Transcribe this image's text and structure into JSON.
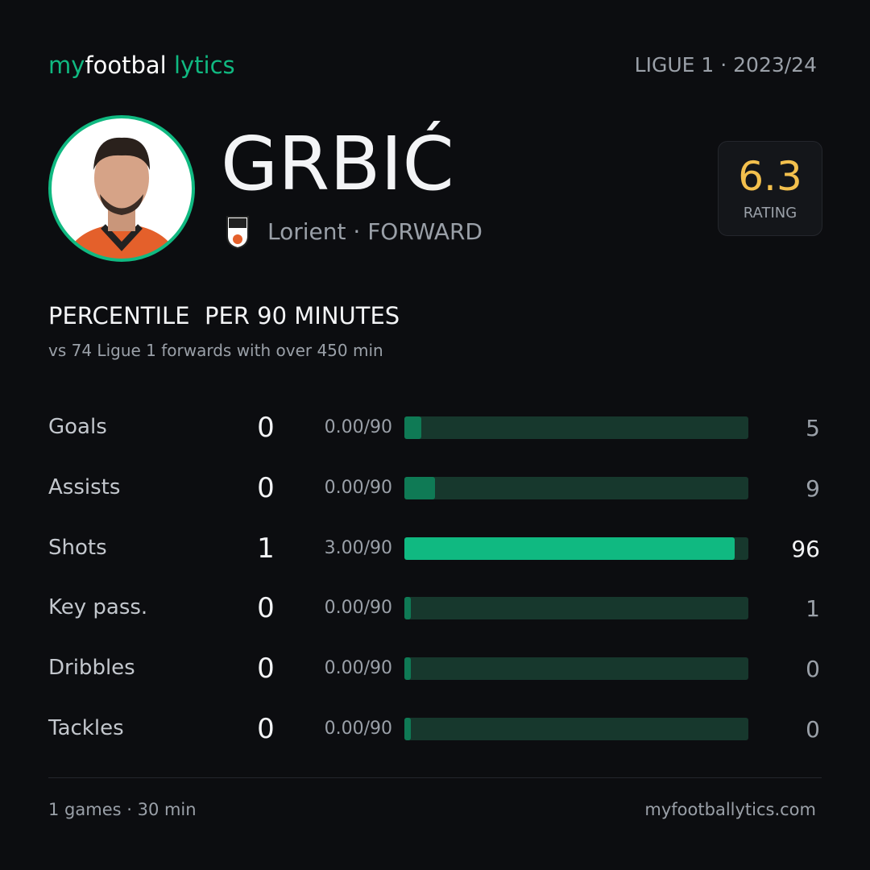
{
  "header": {
    "logo": [
      "my",
      "footbal",
      "lytics"
    ],
    "league": "LIGUE 1 · 2023/24"
  },
  "player": {
    "name": "GRBIĆ",
    "club": "Lorient",
    "separator": "·",
    "position": "FORWARD",
    "rating": 6.3,
    "rating_label": "RATING"
  },
  "section": {
    "title": "PERCENTILE",
    "title_suffix": "PER 90 MINUTES",
    "subtitle": "vs 74 Ligue 1 forwards",
    "subtitle_suffix": "with over 450 min"
  },
  "rows": [
    {
      "label": "Goals",
      "value": 0,
      "per90": "0.00/90",
      "percentile": 5
    },
    {
      "label": "Assists",
      "value": 0,
      "per90": "0.00/90",
      "percentile": 9
    },
    {
      "label": "Shots",
      "value": 1,
      "per90": "3.00/90",
      "percentile": 96
    },
    {
      "label": "Key pass.",
      "value": 0,
      "per90": "0.00/90",
      "percentile": 1
    },
    {
      "label": "Dribbles",
      "value": 0,
      "per90": "0.00/90",
      "percentile": 0
    },
    {
      "label": "Tackles",
      "value": 0,
      "per90": "0.00/90",
      "percentile": 0
    }
  ],
  "footer": {
    "left": "1 games · 30 min",
    "right": "myfootballytics.com"
  }
}
